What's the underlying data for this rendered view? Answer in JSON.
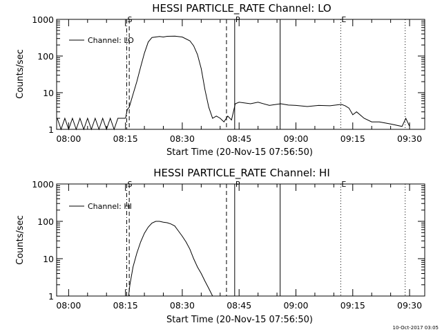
{
  "footer_date": "10-Oct-2017 03:05",
  "chart_data": [
    {
      "type": "line",
      "title": "HESSI PARTICLE_RATE Channel: LO",
      "xlabel": "Start Time (20-Nov-15 07:56:50)",
      "ylabel": "Counts/sec",
      "y_scale": "log",
      "ylim": [
        1,
        1000
      ],
      "y_ticks": [
        "1",
        "10",
        "100",
        "1000"
      ],
      "x_ticks": [
        "08:00",
        "08:15",
        "08:30",
        "08:45",
        "09:00",
        "09:15",
        "09:30"
      ],
      "xlim": [
        "07:56:50",
        "09:34:00"
      ],
      "legend": "Channel: LO",
      "legend_position": "top-left",
      "markers": [
        {
          "label": "S",
          "time": "08:15:20",
          "style": "dashdot"
        },
        {
          "label": "",
          "time": "08:16:00",
          "style": "dashed"
        },
        {
          "label": "",
          "time": "08:41:40",
          "style": "dashed"
        },
        {
          "label": "P",
          "time": "08:43:50",
          "style": "solid"
        },
        {
          "label": "",
          "time": "08:55:50",
          "style": "solid"
        },
        {
          "label": "E",
          "time": "09:11:50",
          "style": "dotted"
        },
        {
          "label": "",
          "time": "09:28:50",
          "style": "dotted"
        }
      ],
      "series": [
        {
          "x": [
            "07:57:00",
            "07:58:00",
            "07:59:00",
            "08:00:00",
            "08:01:00",
            "08:02:00",
            "08:03:00",
            "08:04:00",
            "08:05:00",
            "08:06:00",
            "08:07:00",
            "08:08:00",
            "08:09:00",
            "08:10:00",
            "08:11:00",
            "08:12:00",
            "08:13:00",
            "08:14:00",
            "08:15:00",
            "08:15:30",
            "08:16:00",
            "08:17:00",
            "08:18:00",
            "08:19:00",
            "08:20:00",
            "08:21:00",
            "08:22:00",
            "08:23:00",
            "08:24:00",
            "08:25:00",
            "08:26:00",
            "08:28:00",
            "08:30:00",
            "08:32:00",
            "08:33:00",
            "08:34:00",
            "08:35:00",
            "08:36:00",
            "08:37:00",
            "08:38:00",
            "08:39:00",
            "08:40:00",
            "08:41:00",
            "08:42:00",
            "08:43:00",
            "08:44:00",
            "08:45:00",
            "08:48:00",
            "08:50:00",
            "08:53:00",
            "08:56:00",
            "08:58:00",
            "09:00:00",
            "09:03:00",
            "09:06:00",
            "09:09:00",
            "09:12:00",
            "09:13:00",
            "09:14:00",
            "09:15:00",
            "09:16:00",
            "09:18:00",
            "09:20:00",
            "09:22:00",
            "09:25:00",
            "09:28:00",
            "09:29:00",
            "09:30:00"
          ],
          "y": [
            2,
            1,
            2,
            1,
            2,
            1,
            2,
            1,
            2,
            1,
            2,
            1,
            2,
            1,
            2,
            1,
            2,
            2,
            2,
            3.5,
            4,
            9,
            20,
            50,
            120,
            240,
            320,
            330,
            340,
            330,
            345,
            350,
            330,
            260,
            190,
            110,
            45,
            12,
            4,
            2,
            2.3,
            2,
            1.6,
            2.3,
            1.8,
            5,
            5.5,
            5,
            5.5,
            4.5,
            5,
            4.6,
            4.5,
            4.2,
            4.5,
            4.4,
            4.8,
            4.4,
            3.8,
            2.5,
            3,
            2,
            1.6,
            1.6,
            1.4,
            1.2,
            2,
            1.2
          ]
        }
      ]
    },
    {
      "type": "line",
      "title": "HESSI PARTICLE_RATE Channel: HI",
      "xlabel": "Start Time (20-Nov-15 07:56:50)",
      "ylabel": "Counts/sec",
      "y_scale": "log",
      "ylim": [
        1,
        1000
      ],
      "y_ticks": [
        "1",
        "10",
        "100",
        "1000"
      ],
      "x_ticks": [
        "08:00",
        "08:15",
        "08:30",
        "08:45",
        "09:00",
        "09:15",
        "09:30"
      ],
      "xlim": [
        "07:56:50",
        "09:34:00"
      ],
      "legend": "Channel: HI",
      "legend_position": "top-left",
      "markers": [
        {
          "label": "S",
          "time": "08:15:20",
          "style": "dashdot"
        },
        {
          "label": "",
          "time": "08:16:00",
          "style": "dashed"
        },
        {
          "label": "",
          "time": "08:41:40",
          "style": "dashed"
        },
        {
          "label": "P",
          "time": "08:43:50",
          "style": "solid"
        },
        {
          "label": "",
          "time": "08:55:50",
          "style": "solid"
        },
        {
          "label": "E",
          "time": "09:11:50",
          "style": "dotted"
        },
        {
          "label": "",
          "time": "09:28:50",
          "style": "dotted"
        }
      ],
      "series": [
        {
          "x": [
            "08:15:50",
            "08:16:10",
            "08:17:00",
            "08:18:00",
            "08:19:00",
            "08:20:00",
            "08:21:00",
            "08:22:00",
            "08:23:00",
            "08:24:00",
            "08:25:00",
            "08:26:00",
            "08:27:00",
            "08:28:00",
            "08:29:00",
            "08:30:00",
            "08:31:00",
            "08:32:00",
            "08:33:00",
            "08:34:00",
            "08:35:00",
            "08:36:00",
            "08:37:00",
            "08:38:00"
          ],
          "y": [
            1,
            2,
            6,
            14,
            28,
            48,
            70,
            90,
            100,
            100,
            95,
            92,
            85,
            75,
            55,
            40,
            28,
            18,
            10,
            6,
            4,
            2.5,
            1.6,
            1
          ]
        }
      ]
    }
  ]
}
